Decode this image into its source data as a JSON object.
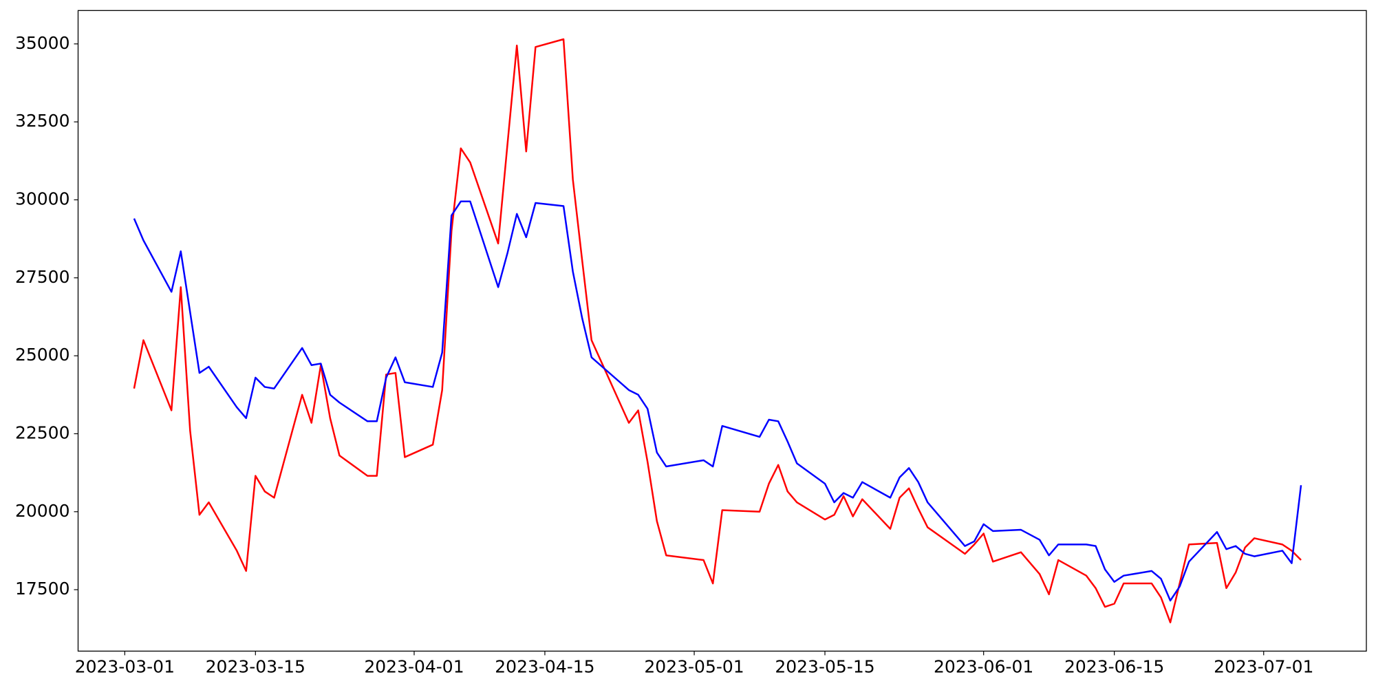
{
  "chart_data": {
    "type": "line",
    "x": [
      "2023-03-02",
      "2023-03-03",
      "2023-03-06",
      "2023-03-07",
      "2023-03-08",
      "2023-03-09",
      "2023-03-10",
      "2023-03-13",
      "2023-03-14",
      "2023-03-15",
      "2023-03-16",
      "2023-03-17",
      "2023-03-20",
      "2023-03-21",
      "2023-03-22",
      "2023-03-23",
      "2023-03-24",
      "2023-03-27",
      "2023-03-28",
      "2023-03-29",
      "2023-03-30",
      "2023-03-31",
      "2023-04-03",
      "2023-04-04",
      "2023-04-05",
      "2023-04-06",
      "2023-04-07",
      "2023-04-10",
      "2023-04-11",
      "2023-04-12",
      "2023-04-13",
      "2023-04-14",
      "2023-04-17",
      "2023-04-18",
      "2023-04-19",
      "2023-04-20",
      "2023-04-24",
      "2023-04-25",
      "2023-04-26",
      "2023-04-27",
      "2023-04-28",
      "2023-05-02",
      "2023-05-03",
      "2023-05-04",
      "2023-05-08",
      "2023-05-09",
      "2023-05-10",
      "2023-05-11",
      "2023-05-12",
      "2023-05-15",
      "2023-05-16",
      "2023-05-17",
      "2023-05-18",
      "2023-05-19",
      "2023-05-22",
      "2023-05-23",
      "2023-05-24",
      "2023-05-25",
      "2023-05-26",
      "2023-05-30",
      "2023-05-31",
      "2023-06-01",
      "2023-06-02",
      "2023-06-05",
      "2023-06-07",
      "2023-06-08",
      "2023-06-09",
      "2023-06-12",
      "2023-06-13",
      "2023-06-14",
      "2023-06-15",
      "2023-06-16",
      "2023-06-19",
      "2023-06-20",
      "2023-06-21",
      "2023-06-22",
      "2023-06-23",
      "2023-06-26",
      "2023-06-27",
      "2023-06-28",
      "2023-06-29",
      "2023-06-30",
      "2023-07-03",
      "2023-07-04",
      "2023-07-05"
    ],
    "series": [
      {
        "color": "#ff0000",
        "values": [
          23950,
          25500,
          23250,
          27200,
          22600,
          19900,
          20300,
          18750,
          18100,
          21150,
          20650,
          20450,
          23750,
          22850,
          24700,
          23000,
          21800,
          21150,
          21150,
          24400,
          24450,
          21750,
          22150,
          23900,
          29000,
          31650,
          31200,
          28600,
          31800,
          34950,
          31550,
          34900,
          35150,
          30650,
          28050,
          25500,
          22850,
          23250,
          21600,
          19700,
          18600,
          18450,
          17700,
          20050,
          20000,
          20900,
          21500,
          20650,
          20300,
          19750,
          19900,
          20500,
          19850,
          20400,
          19450,
          20450,
          20750,
          20100,
          19500,
          18650,
          18950,
          19300,
          18400,
          18700,
          18000,
          17350,
          18450,
          17950,
          17550,
          16950,
          17050,
          17700,
          17700,
          17250,
          16450,
          17700,
          18950,
          19000,
          17550,
          18050,
          18850,
          19150,
          18950,
          18750,
          18450
        ]
      },
      {
        "color": "#0000ff",
        "values": [
          29400,
          28700,
          27050,
          28350,
          26400,
          24450,
          24650,
          23350,
          23000,
          24300,
          24000,
          23950,
          25250,
          24700,
          24750,
          23750,
          23500,
          22900,
          22900,
          24300,
          24950,
          24150,
          24000,
          25100,
          29500,
          29950,
          29950,
          27200,
          28300,
          29550,
          28800,
          29900,
          29800,
          27700,
          26200,
          24950,
          23900,
          23750,
          23300,
          21900,
          21450,
          21650,
          21450,
          22750,
          22400,
          22950,
          22900,
          22250,
          21550,
          20900,
          20300,
          20600,
          20450,
          20950,
          20450,
          21100,
          21400,
          20950,
          20300,
          18900,
          19050,
          19600,
          19380,
          19420,
          19100,
          18600,
          18950,
          18950,
          18900,
          18150,
          17750,
          17950,
          18100,
          17850,
          17150,
          17600,
          18400,
          19350,
          18800,
          18900,
          18650,
          18570,
          18750,
          18350,
          20850
        ]
      }
    ],
    "xlim": [
      "2023-02-24",
      "2023-07-12"
    ],
    "xticks": [
      "2023-03-01",
      "2023-03-15",
      "2023-04-01",
      "2023-04-15",
      "2023-05-01",
      "2023-05-15",
      "2023-06-01",
      "2023-06-15",
      "2023-07-01"
    ],
    "ylim": [
      15530,
      36070
    ],
    "yticks": [
      17500,
      20000,
      22500,
      25000,
      27500,
      30000,
      32500,
      35000
    ],
    "grid": false
  }
}
